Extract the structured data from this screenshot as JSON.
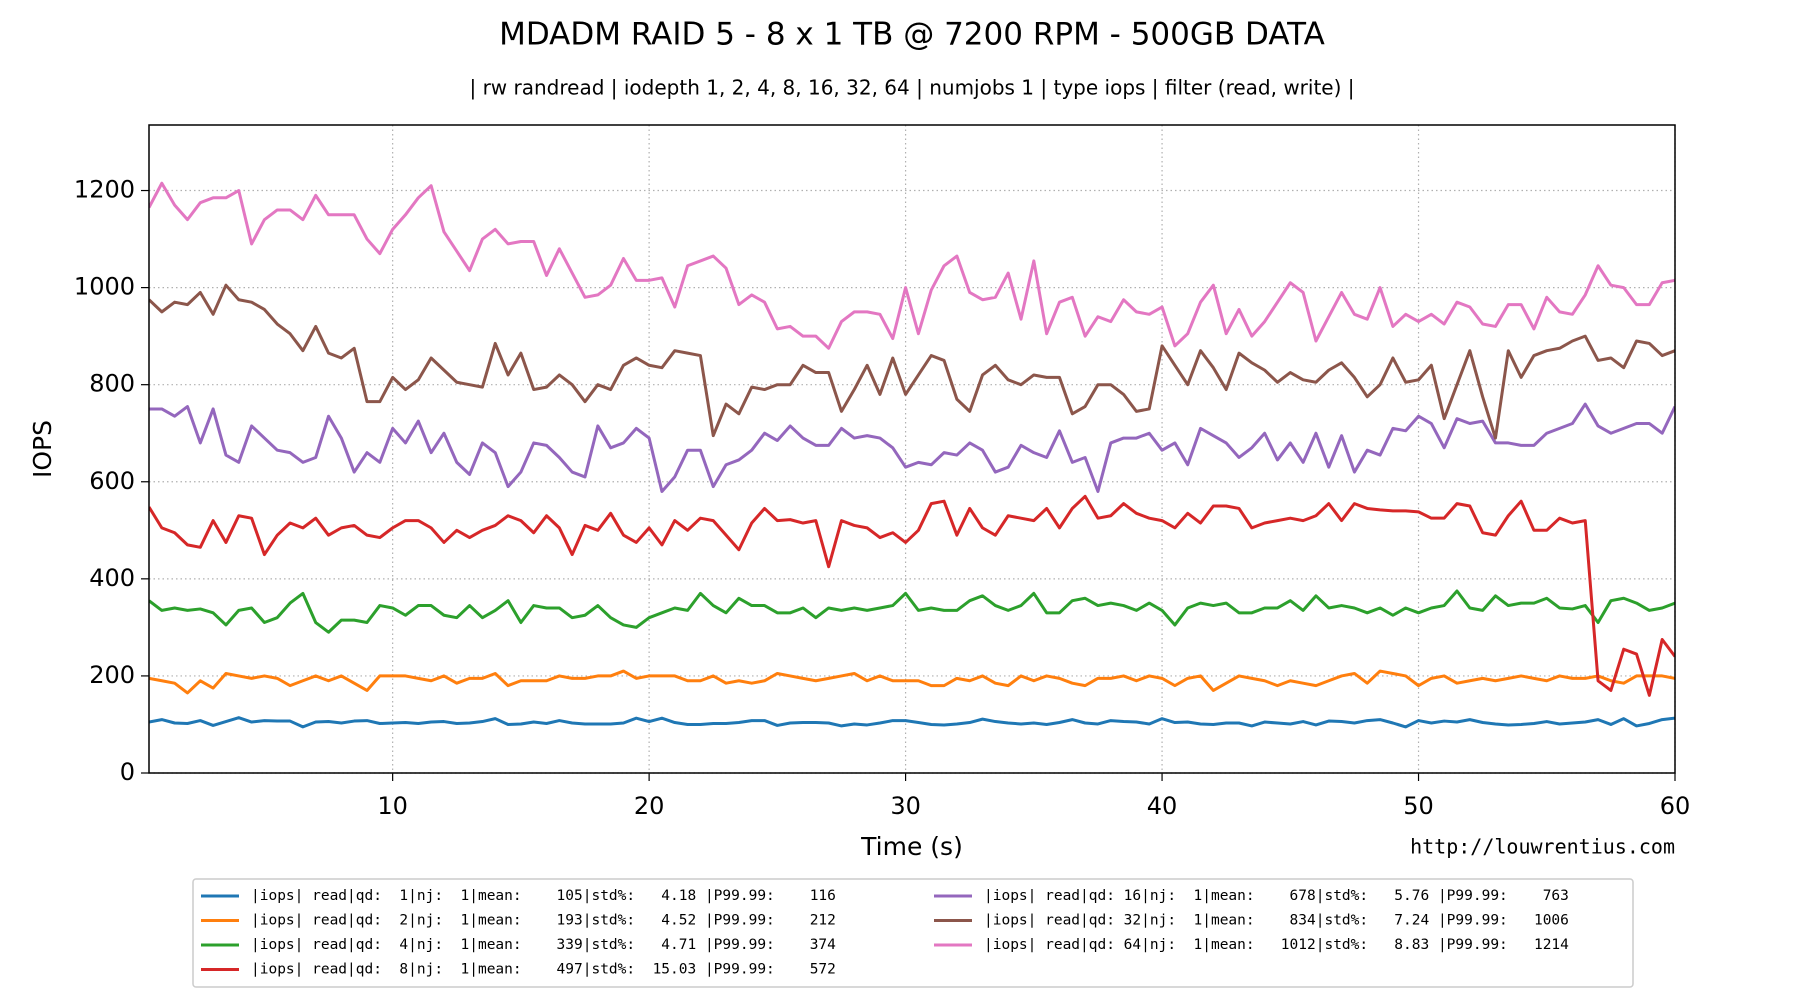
{
  "chart_data": {
    "type": "line",
    "title": "MDADM RAID 5 - 8 x 1 TB @ 7200 RPM - 500GB DATA",
    "subtitle": "| rw randread | iodepth 1, 2, 4, 8, 16, 32, 64 | numjobs 1 | type iops | filter (read, write) |",
    "x_label": "Time (s)",
    "y_label": "IOPS",
    "annotation": "http://louwrentius.com",
    "grid": true,
    "legend": "lower center",
    "xlim": [
      0.5,
      60
    ],
    "xticks": [
      10,
      20,
      30,
      40,
      50,
      60
    ],
    "ylim": [
      0,
      1335
    ],
    "yticks": [
      0,
      200,
      400,
      600,
      800,
      1000,
      1200
    ],
    "x": [
      0.5,
      1,
      1.5,
      2,
      2.5,
      3,
      3.5,
      4,
      4.5,
      5,
      5.5,
      6,
      6.5,
      7,
      7.5,
      8,
      8.5,
      9,
      9.5,
      10,
      10.5,
      11,
      11.5,
      12,
      12.5,
      13,
      13.5,
      14,
      14.5,
      15,
      15.5,
      16,
      16.5,
      17,
      17.5,
      18,
      18.5,
      19,
      19.5,
      20,
      20.5,
      21,
      21.5,
      22,
      22.5,
      23,
      23.5,
      24,
      24.5,
      25,
      25.5,
      26,
      26.5,
      27,
      27.5,
      28,
      28.5,
      29,
      29.5,
      30,
      30.5,
      31,
      31.5,
      32,
      32.5,
      33,
      33.5,
      34,
      34.5,
      35,
      35.5,
      36,
      36.5,
      37,
      37.5,
      38,
      38.5,
      39,
      39.5,
      40,
      40.5,
      41,
      41.5,
      42,
      42.5,
      43,
      43.5,
      44,
      44.5,
      45,
      45.5,
      46,
      46.5,
      47,
      47.5,
      48,
      48.5,
      49,
      49.5,
      50,
      50.5,
      51,
      51.5,
      52,
      52.5,
      53,
      53.5,
      54,
      54.5,
      55,
      55.5,
      56,
      56.5,
      57,
      57.5,
      58,
      58.5,
      59,
      59.5,
      60
    ],
    "series": [
      {
        "name": "|iops| read|qd:  1|nj:  1|mean:    105|std%:   4.18 |P99.99:    116",
        "color": "#1f77b4",
        "values": [
          105,
          110,
          103,
          102,
          108,
          98,
          106,
          114,
          105,
          108,
          107,
          107,
          95,
          105,
          106,
          103,
          107,
          108,
          102,
          103,
          104,
          102,
          105,
          106,
          102,
          103,
          106,
          112,
          100,
          101,
          105,
          102,
          108,
          103,
          101,
          101,
          101,
          103,
          113,
          106,
          113,
          104,
          100,
          100,
          102,
          102,
          104,
          108,
          108,
          98,
          103,
          104,
          104,
          103,
          97,
          101,
          99,
          103,
          108,
          108,
          104,
          100,
          99,
          101,
          104,
          111,
          106,
          103,
          101,
          103,
          100,
          104,
          110,
          103,
          101,
          108,
          106,
          105,
          101,
          112,
          104,
          105,
          101,
          100,
          103,
          103,
          97,
          105,
          103,
          101,
          106,
          99,
          107,
          106,
          103,
          108,
          110,
          103,
          95,
          108,
          103,
          107,
          105,
          110,
          104,
          101,
          99,
          100,
          102,
          106,
          101,
          103,
          105,
          110,
          100,
          112,
          97,
          102,
          110,
          113
        ]
      },
      {
        "name": "|iops| read|qd:  2|nj:  1|mean:    193|std%:   4.52 |P99.99:    212",
        "color": "#ff7f0e",
        "values": [
          195,
          190,
          185,
          165,
          190,
          175,
          205,
          200,
          195,
          200,
          195,
          180,
          190,
          200,
          190,
          200,
          185,
          170,
          200,
          200,
          200,
          195,
          190,
          200,
          185,
          195,
          195,
          205,
          180,
          190,
          190,
          190,
          200,
          195,
          195,
          200,
          200,
          210,
          195,
          200,
          200,
          200,
          190,
          190,
          200,
          185,
          190,
          185,
          190,
          205,
          200,
          195,
          190,
          195,
          200,
          205,
          190,
          200,
          190,
          190,
          190,
          180,
          180,
          195,
          190,
          200,
          185,
          180,
          200,
          190,
          200,
          195,
          185,
          180,
          195,
          195,
          200,
          190,
          200,
          195,
          180,
          195,
          200,
          170,
          185,
          200,
          195,
          190,
          180,
          190,
          185,
          180,
          190,
          200,
          205,
          185,
          210,
          205,
          200,
          180,
          195,
          200,
          185,
          190,
          195,
          190,
          195,
          200,
          195,
          190,
          200,
          195,
          195,
          200,
          190,
          185,
          200,
          200,
          200,
          195
        ]
      },
      {
        "name": "|iops| read|qd:  4|nj:  1|mean:    339|std%:   4.71 |P99.99:    374",
        "color": "#2ca02c",
        "values": [
          355,
          335,
          340,
          335,
          338,
          330,
          305,
          335,
          340,
          310,
          320,
          350,
          370,
          310,
          290,
          315,
          315,
          310,
          345,
          340,
          325,
          345,
          345,
          325,
          320,
          345,
          320,
          335,
          355,
          310,
          345,
          340,
          340,
          320,
          325,
          345,
          320,
          305,
          300,
          320,
          330,
          340,
          335,
          370,
          345,
          330,
          360,
          345,
          345,
          330,
          330,
          340,
          320,
          340,
          335,
          340,
          335,
          340,
          345,
          370,
          335,
          340,
          335,
          335,
          355,
          365,
          345,
          335,
          345,
          370,
          330,
          330,
          355,
          360,
          345,
          350,
          345,
          335,
          350,
          335,
          305,
          340,
          350,
          345,
          350,
          330,
          330,
          340,
          340,
          355,
          335,
          365,
          340,
          345,
          340,
          330,
          340,
          325,
          340,
          330,
          340,
          345,
          375,
          340,
          335,
          365,
          345,
          350,
          350,
          360,
          340,
          338,
          345,
          310,
          355,
          360,
          350,
          335,
          340,
          350
        ]
      },
      {
        "name": "|iops| read|qd:  8|nj:  1|mean:    497|std%:  15.03 |P99.99:    572",
        "color": "#d62728",
        "values": [
          548,
          505,
          495,
          470,
          465,
          520,
          475,
          530,
          525,
          450,
          490,
          515,
          505,
          525,
          490,
          505,
          510,
          490,
          485,
          505,
          520,
          520,
          505,
          475,
          500,
          485,
          500,
          510,
          530,
          520,
          495,
          530,
          505,
          450,
          510,
          500,
          535,
          490,
          475,
          505,
          470,
          520,
          500,
          525,
          520,
          490,
          460,
          515,
          545,
          520,
          522,
          515,
          520,
          425,
          520,
          510,
          505,
          485,
          495,
          475,
          500,
          555,
          560,
          490,
          545,
          505,
          490,
          530,
          525,
          520,
          545,
          505,
          545,
          570,
          525,
          530,
          555,
          535,
          525,
          520,
          505,
          535,
          515,
          550,
          550,
          545,
          505,
          515,
          520,
          525,
          520,
          530,
          555,
          520,
          555,
          545,
          542,
          540,
          540,
          538,
          525,
          525,
          555,
          550,
          495,
          490,
          530,
          560,
          500,
          500,
          525,
          515,
          520,
          190,
          170,
          255,
          245,
          160,
          275,
          240
        ]
      },
      {
        "name": "|iops| read|qd: 16|nj:  1|mean:    678|std%:   5.76 |P99.99:    763",
        "color": "#9467bd",
        "values": [
          750,
          750,
          735,
          755,
          680,
          750,
          655,
          640,
          715,
          690,
          665,
          660,
          640,
          650,
          735,
          690,
          620,
          660,
          640,
          710,
          680,
          725,
          660,
          700,
          640,
          615,
          680,
          660,
          590,
          620,
          680,
          675,
          650,
          620,
          610,
          715,
          670,
          680,
          710,
          690,
          580,
          610,
          665,
          665,
          590,
          635,
          645,
          665,
          700,
          685,
          715,
          690,
          675,
          675,
          710,
          690,
          695,
          690,
          670,
          630,
          640,
          635,
          660,
          655,
          680,
          665,
          620,
          630,
          675,
          660,
          650,
          705,
          640,
          650,
          580,
          680,
          690,
          690,
          700,
          665,
          680,
          635,
          710,
          695,
          680,
          650,
          670,
          700,
          645,
          680,
          640,
          700,
          630,
          695,
          620,
          665,
          655,
          710,
          705,
          735,
          720,
          670,
          730,
          720,
          725,
          680,
          680,
          675,
          675,
          700,
          710,
          720,
          760,
          715,
          700,
          710,
          720,
          720,
          700,
          755
        ]
      },
      {
        "name": "|iops| read|qd: 32|nj:  1|mean:    834|std%:   7.24 |P99.99:   1006",
        "color": "#8c564b",
        "values": [
          975,
          950,
          970,
          965,
          990,
          945,
          1005,
          975,
          970,
          955,
          925,
          905,
          870,
          920,
          865,
          855,
          875,
          765,
          765,
          815,
          790,
          810,
          855,
          830,
          805,
          800,
          795,
          885,
          820,
          865,
          790,
          795,
          820,
          800,
          765,
          800,
          790,
          840,
          855,
          840,
          835,
          870,
          865,
          860,
          695,
          760,
          740,
          795,
          790,
          800,
          800,
          840,
          825,
          825,
          745,
          790,
          840,
          780,
          855,
          780,
          820,
          860,
          850,
          770,
          745,
          820,
          840,
          810,
          800,
          820,
          815,
          815,
          740,
          755,
          800,
          800,
          780,
          745,
          750,
          880,
          840,
          800,
          870,
          835,
          790,
          865,
          845,
          830,
          805,
          825,
          810,
          805,
          830,
          845,
          815,
          775,
          800,
          855,
          805,
          810,
          840,
          730,
          800,
          870,
          775,
          690,
          870,
          815,
          860,
          870,
          875,
          890,
          900,
          850,
          855,
          835,
          890,
          885,
          860,
          870
        ]
      },
      {
        "name": "|iops| read|qd: 64|nj:  1|mean:   1012|std%:   8.83 |P99.99:   1214",
        "color": "#e377c2",
        "values": [
          1165,
          1215,
          1170,
          1140,
          1175,
          1185,
          1185,
          1200,
          1090,
          1140,
          1160,
          1160,
          1140,
          1190,
          1150,
          1150,
          1150,
          1100,
          1070,
          1120,
          1150,
          1185,
          1210,
          1115,
          1075,
          1035,
          1100,
          1120,
          1090,
          1095,
          1095,
          1025,
          1080,
          1030,
          980,
          985,
          1005,
          1060,
          1015,
          1015,
          1020,
          960,
          1045,
          1055,
          1065,
          1040,
          965,
          985,
          970,
          915,
          920,
          900,
          900,
          875,
          930,
          950,
          950,
          945,
          895,
          1000,
          905,
          995,
          1045,
          1065,
          990,
          975,
          980,
          1030,
          935,
          1055,
          905,
          970,
          980,
          900,
          940,
          930,
          975,
          950,
          945,
          960,
          880,
          905,
          970,
          1005,
          905,
          955,
          900,
          930,
          970,
          1010,
          990,
          890,
          940,
          990,
          945,
          935,
          1000,
          920,
          945,
          930,
          945,
          925,
          970,
          960,
          925,
          920,
          965,
          965,
          915,
          980,
          950,
          945,
          985,
          1045,
          1005,
          1000,
          965,
          965,
          1010,
          1015
        ]
      }
    ]
  }
}
